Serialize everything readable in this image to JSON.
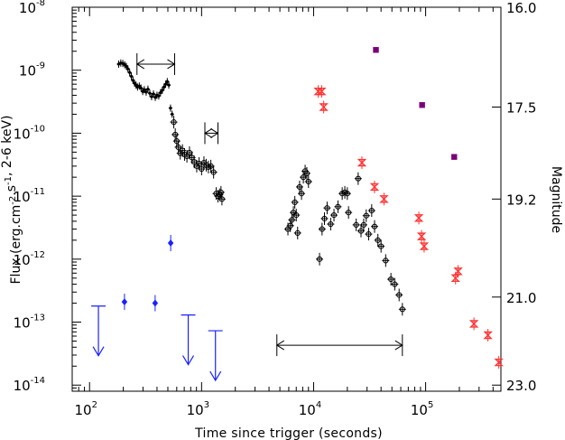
{
  "chart_data": {
    "type": "scatter",
    "xlabel": "Time since trigger (seconds)",
    "ylabel": "Flux (erg.cm^-2.s^-1, 2-6 keV)",
    "y2label": "Magnitude",
    "x_scale": "log",
    "y_scale": "log",
    "xlim": [
      70,
      470000
    ],
    "ylim": [
      8e-15,
      1e-08
    ],
    "x_ticks": [
      {
        "value": 100,
        "base": "10",
        "exp": "2"
      },
      {
        "value": 1000,
        "base": "10",
        "exp": "3"
      },
      {
        "value": 10000,
        "base": "10",
        "exp": "4"
      },
      {
        "value": 100000,
        "base": "10",
        "exp": "5"
      }
    ],
    "y_ticks": [
      {
        "value": 1e-14,
        "base": "10",
        "exp": "-14"
      },
      {
        "value": 1e-13,
        "base": "10",
        "exp": "-13"
      },
      {
        "value": 1e-12,
        "base": "10",
        "exp": "-12"
      },
      {
        "value": 1e-11,
        "base": "10",
        "exp": "-11"
      },
      {
        "value": 1e-10,
        "base": "10",
        "exp": "-10"
      },
      {
        "value": 1e-09,
        "base": "10",
        "exp": "-9"
      },
      {
        "value": 1e-08,
        "base": "10",
        "exp": "-8"
      }
    ],
    "y2_ticks": [
      {
        "label": "16.0",
        "at_flux": 1e-08
      },
      {
        "label": "17.5",
        "at_flux": 2.6e-10
      },
      {
        "label": "19.2",
        "at_flux": 9e-12
      },
      {
        "label": "21.0",
        "at_flux": 2.5e-13
      },
      {
        "label": "23.0",
        "at_flux": 1e-14
      }
    ],
    "colors": {
      "xray": "#000000",
      "xray_upper_limit": "#1a22ff",
      "optical_red": "#ff3333",
      "optical_purple": "#7a0078",
      "interval_arrow": "#000000"
    },
    "series": [
      {
        "marker": "filled-diamond-small",
        "color": "#000000",
        "points": [
          {
            "x": 182,
            "y": 1.25e-09
          },
          {
            "x": 190,
            "y": 1.3e-09
          },
          {
            "x": 198,
            "y": 1.28e-09
          },
          {
            "x": 206,
            "y": 1.22e-09
          },
          {
            "x": 213,
            "y": 1.15e-09
          },
          {
            "x": 220,
            "y": 1.05e-09
          },
          {
            "x": 228,
            "y": 9.2e-10
          },
          {
            "x": 236,
            "y": 8e-10
          },
          {
            "x": 244,
            "y": 6.9e-10
          },
          {
            "x": 252,
            "y": 6.2e-10
          },
          {
            "x": 260,
            "y": 5.8e-10
          },
          {
            "x": 268,
            "y": 5.4e-10
          },
          {
            "x": 278,
            "y": 5.6e-10
          },
          {
            "x": 288,
            "y": 5.2e-10
          },
          {
            "x": 298,
            "y": 4.6e-10
          },
          {
            "x": 308,
            "y": 4.9e-10
          },
          {
            "x": 320,
            "y": 4.5e-10
          },
          {
            "x": 332,
            "y": 5e-10
          },
          {
            "x": 345,
            "y": 4.3e-10
          },
          {
            "x": 358,
            "y": 3.8e-10
          },
          {
            "x": 372,
            "y": 4.2e-10
          },
          {
            "x": 386,
            "y": 3.7e-10
          },
          {
            "x": 400,
            "y": 4e-10
          },
          {
            "x": 415,
            "y": 3.9e-10
          },
          {
            "x": 430,
            "y": 4.4e-10
          },
          {
            "x": 446,
            "y": 4.8e-10
          },
          {
            "x": 462,
            "y": 5.4e-10
          },
          {
            "x": 478,
            "y": 6e-10
          },
          {
            "x": 494,
            "y": 6.6e-10
          },
          {
            "x": 510,
            "y": 5.8e-10
          },
          {
            "x": 528,
            "y": 2.5e-10
          },
          {
            "x": 546,
            "y": 2e-10
          }
        ]
      },
      {
        "marker": "crosshair-circle",
        "color": "#000000",
        "points": [
          {
            "x": 565,
            "y": 1.5e-10
          },
          {
            "x": 582,
            "y": 9.5e-11
          },
          {
            "x": 600,
            "y": 7.5e-11
          },
          {
            "x": 620,
            "y": 6e-11
          },
          {
            "x": 645,
            "y": 4.8e-11
          },
          {
            "x": 675,
            "y": 5.3e-11
          },
          {
            "x": 705,
            "y": 4.6e-11
          },
          {
            "x": 740,
            "y": 4.3e-11
          },
          {
            "x": 780,
            "y": 4.9e-11
          },
          {
            "x": 820,
            "y": 4.1e-11
          },
          {
            "x": 860,
            "y": 3.5e-11
          },
          {
            "x": 905,
            "y": 3e-11
          },
          {
            "x": 950,
            "y": 3.3e-11
          },
          {
            "x": 1000,
            "y": 2.7e-11
          },
          {
            "x": 1050,
            "y": 3.4e-11
          },
          {
            "x": 1100,
            "y": 3.1e-11
          },
          {
            "x": 1150,
            "y": 2.9e-11
          },
          {
            "x": 1210,
            "y": 3e-11
          },
          {
            "x": 1280,
            "y": 2.4e-11
          },
          {
            "x": 1350,
            "y": 1.1e-11
          },
          {
            "x": 1400,
            "y": 1e-11
          },
          {
            "x": 1450,
            "y": 1.05e-11
          },
          {
            "x": 1490,
            "y": 1.15e-11
          },
          {
            "x": 1520,
            "y": 9e-12
          },
          {
            "x": 5900,
            "y": 3e-12
          },
          {
            "x": 6200,
            "y": 3.4e-12
          },
          {
            "x": 6400,
            "y": 4.2e-12
          },
          {
            "x": 6600,
            "y": 5.5e-12
          },
          {
            "x": 6800,
            "y": 8e-12
          },
          {
            "x": 7000,
            "y": 5e-12
          },
          {
            "x": 7200,
            "y": 2.6e-12
          },
          {
            "x": 7500,
            "y": 1.4e-11
          },
          {
            "x": 7800,
            "y": 1.1e-11
          },
          {
            "x": 8100,
            "y": 2e-11
          },
          {
            "x": 8400,
            "y": 2.5e-11
          },
          {
            "x": 8700,
            "y": 2.3e-11
          },
          {
            "x": 9000,
            "y": 1.7e-11
          },
          {
            "x": 11300,
            "y": 1e-12
          },
          {
            "x": 11900,
            "y": 3e-12
          },
          {
            "x": 12500,
            "y": 4.4e-12
          },
          {
            "x": 13200,
            "y": 6.5e-12
          },
          {
            "x": 14200,
            "y": 3.6e-12
          },
          {
            "x": 15200,
            "y": 5e-12
          },
          {
            "x": 16500,
            "y": 6.8e-12
          },
          {
            "x": 18000,
            "y": 1.1e-11
          },
          {
            "x": 19000,
            "y": 1.15e-11
          },
          {
            "x": 20000,
            "y": 1.1e-11
          },
          {
            "x": 20500,
            "y": 5.5e-12
          },
          {
            "x": 24000,
            "y": 3.5e-12
          },
          {
            "x": 25000,
            "y": 1.9e-11
          },
          {
            "x": 26500,
            "y": 2.8e-12
          },
          {
            "x": 28000,
            "y": 3.5e-12
          },
          {
            "x": 29500,
            "y": 4.9e-12
          },
          {
            "x": 31000,
            "y": 2.5e-12
          },
          {
            "x": 33000,
            "y": 5.9e-12
          },
          {
            "x": 35000,
            "y": 3.3e-12
          },
          {
            "x": 37500,
            "y": 2e-12
          },
          {
            "x": 40000,
            "y": 1.6e-12
          },
          {
            "x": 44000,
            "y": 9.5e-13
          },
          {
            "x": 49000,
            "y": 4.8e-13
          },
          {
            "x": 53000,
            "y": 4e-13
          },
          {
            "x": 58000,
            "y": 2.7e-13
          },
          {
            "x": 62000,
            "y": 1.6e-13
          }
        ]
      },
      {
        "marker": "filled-diamond",
        "color": "#1a22ff",
        "points": [
          {
            "x": 205,
            "y": 2.1e-13
          },
          {
            "x": 385,
            "y": 2e-13
          },
          {
            "x": 530,
            "y": 1.8e-12
          }
        ]
      },
      {
        "marker": "upper-limit-arrow",
        "color": "#1a22ff",
        "points": [
          {
            "x": 120,
            "y": 1.8e-13
          },
          {
            "x": 760,
            "y": 1.3e-13
          },
          {
            "x": 1330,
            "y": 7.3e-14
          }
        ]
      },
      {
        "marker": "bowtie",
        "color": "#ff3333",
        "points": [
          {
            "x": 11000,
            "y": 4.6e-10
          },
          {
            "x": 11800,
            "y": 4.6e-10
          },
          {
            "x": 12300,
            "y": 2.6e-10
          },
          {
            "x": 27000,
            "y": 3.4e-11
          },
          {
            "x": 35000,
            "y": 1.4e-11
          },
          {
            "x": 42500,
            "y": 9e-12
          },
          {
            "x": 87000,
            "y": 4.5e-12
          },
          {
            "x": 92000,
            "y": 2.3e-12
          },
          {
            "x": 97000,
            "y": 1.6e-12
          },
          {
            "x": 185000,
            "y": 5e-13
          },
          {
            "x": 195000,
            "y": 6.4e-13
          },
          {
            "x": 270000,
            "y": 9.4e-14
          },
          {
            "x": 360000,
            "y": 6.2e-14
          },
          {
            "x": 450000,
            "y": 2.3e-14
          }
        ]
      },
      {
        "marker": "filled-square",
        "color": "#7a0078",
        "points": [
          {
            "x": 36000,
            "y": 2.1e-09
          },
          {
            "x": 93000,
            "y": 2.8e-10
          },
          {
            "x": 180000,
            "y": 4.2e-11
          }
        ]
      }
    ],
    "intervals": [
      {
        "x_from": 265,
        "x_to": 575,
        "y": 1.25e-09
      },
      {
        "x_from": 1070,
        "x_to": 1400,
        "y": 1e-10
      },
      {
        "x_from": 4700,
        "x_to": 62000,
        "y": 4.3e-14
      }
    ]
  }
}
